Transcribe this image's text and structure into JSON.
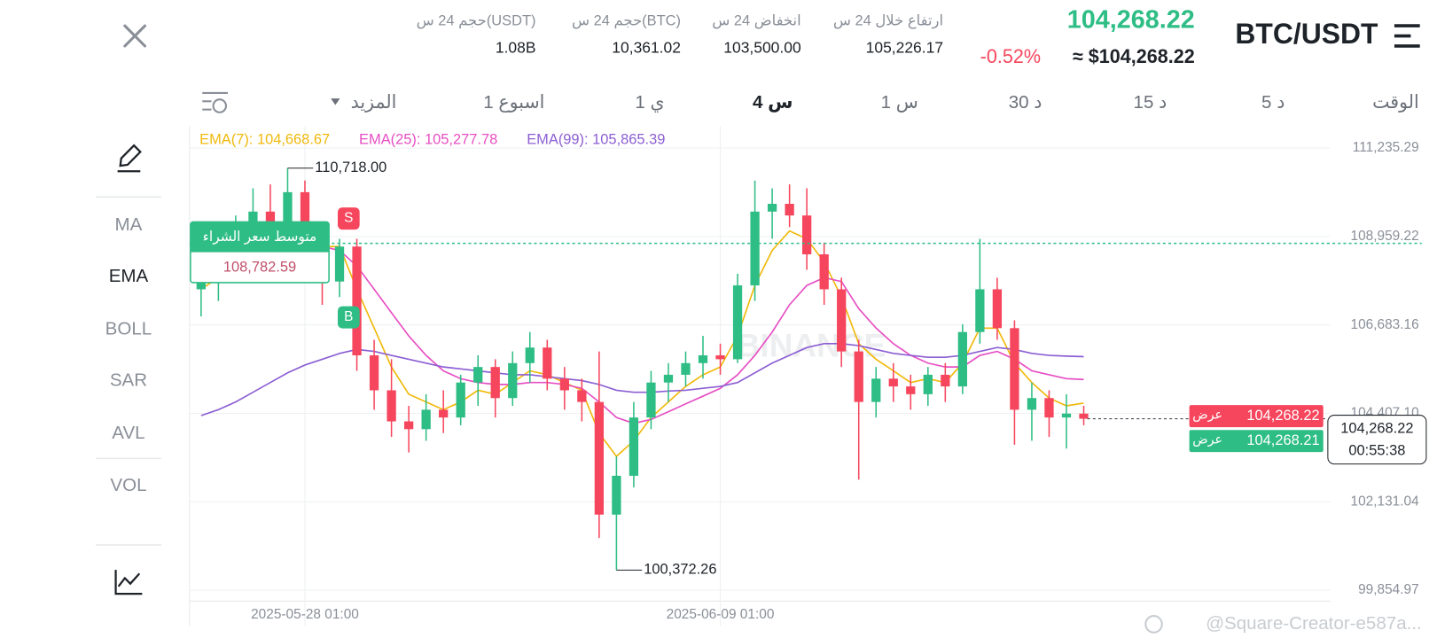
{
  "header": {
    "pair": "BTC/USDT",
    "price": "104,268.22",
    "change": "-0.52%",
    "fiat_price": "≈ $104,268.22",
    "stats": [
      {
        "label": "ارتفاع خلال 24 س",
        "value": "105,226.17"
      },
      {
        "label": "انخفاض 24 س",
        "value": "103,500.00"
      },
      {
        "label": "حجم 24 س(BTC)",
        "value": "10,361.02"
      },
      {
        "label": "حجم 24 س(USDT)",
        "value": "1.08B"
      }
    ]
  },
  "timeframes": [
    "الوقت",
    "5 د",
    "15 د",
    "30 د",
    "1 س",
    "4 س",
    "1 ي",
    "1 اسبوع",
    "المزيد"
  ],
  "indicators": [
    "MA",
    "EMA",
    "BOLL",
    "SAR",
    "AVL",
    "VOL"
  ],
  "watermark": "BINANCE",
  "credit": "@Square-Creator-e587a...",
  "chart_data": {
    "type": "candlestick",
    "up_color": "#2ebd85",
    "down_color": "#f6465d",
    "x": [
      "2025-05-25 01:00",
      "2025-05-25 13:00",
      "2025-05-26 01:00",
      "2025-05-26 13:00",
      "2025-05-27 01:00",
      "2025-05-27 13:00",
      "2025-05-28 01:00",
      "2025-05-28 13:00",
      "2025-05-29 01:00",
      "2025-05-29 13:00",
      "2025-05-30 01:00",
      "2025-05-30 13:00",
      "2025-05-31 01:00",
      "2025-05-31 13:00",
      "2025-06-01 01:00",
      "2025-06-01 13:00",
      "2025-06-02 01:00",
      "2025-06-02 13:00",
      "2025-06-03 01:00",
      "2025-06-03 13:00",
      "2025-06-04 01:00",
      "2025-06-04 13:00",
      "2025-06-05 01:00",
      "2025-06-05 13:00",
      "2025-06-06 01:00",
      "2025-06-06 13:00",
      "2025-06-07 01:00",
      "2025-06-07 13:00",
      "2025-06-08 01:00",
      "2025-06-08 13:00",
      "2025-06-09 01:00",
      "2025-06-09 13:00",
      "2025-06-10 01:00",
      "2025-06-10 13:00",
      "2025-06-11 01:00",
      "2025-06-11 13:00",
      "2025-06-12 01:00",
      "2025-06-12 13:00",
      "2025-06-13 01:00",
      "2025-06-13 13:00",
      "2025-06-14 01:00",
      "2025-06-14 13:00",
      "2025-06-15 01:00",
      "2025-06-15 13:00",
      "2025-06-16 01:00",
      "2025-06-16 13:00",
      "2025-06-17 01:00",
      "2025-06-17 13:00",
      "2025-06-18 01:00",
      "2025-06-18 13:00",
      "2025-06-19 01:00",
      "2025-06-19 13:00"
    ],
    "open": [
      107600,
      107900,
      108200,
      109200,
      109600,
      108900,
      110100,
      109000,
      107800,
      108700,
      105900,
      105000,
      104200,
      104000,
      104500,
      104300,
      105200,
      105600,
      104800,
      105700,
      106100,
      105300,
      105000,
      104700,
      101800,
      102800,
      104300,
      105200,
      105400,
      105700,
      105900,
      105800,
      107700,
      109600,
      109800,
      109500,
      108500,
      107600,
      106000,
      104700,
      105300,
      105100,
      104900,
      105400,
      105100,
      106500,
      107600,
      106600,
      104500,
      104800,
      104300,
      104400
    ],
    "high": [
      108300,
      108700,
      109500,
      110200,
      110300,
      110718,
      110400,
      109300,
      108900,
      108900,
      106300,
      105800,
      104600,
      104900,
      105000,
      105400,
      105900,
      105800,
      106000,
      106500,
      106300,
      105600,
      105300,
      106000,
      103300,
      104700,
      105500,
      105700,
      106000,
      106400,
      106200,
      108000,
      110400,
      110200,
      110300,
      110200,
      108800,
      107900,
      106300,
      105600,
      105700,
      105400,
      105600,
      105700,
      106700,
      108900,
      107900,
      106800,
      105200,
      105000,
      104900,
      104600
    ],
    "low": [
      106900,
      107300,
      107800,
      108600,
      108300,
      108500,
      108800,
      107200,
      107400,
      105500,
      104500,
      103800,
      103400,
      103700,
      103900,
      104100,
      104600,
      104300,
      104600,
      105200,
      105000,
      104500,
      104200,
      101200,
      100372.26,
      102500,
      104000,
      104700,
      105100,
      105300,
      105400,
      105700,
      107300,
      108900,
      109200,
      108100,
      107200,
      105600,
      102700,
      104300,
      104700,
      104500,
      104600,
      104700,
      104900,
      106200,
      106300,
      103600,
      103700,
      103800,
      103500,
      104100
    ],
    "close": [
      107900,
      108200,
      109200,
      109600,
      108900,
      110100,
      109000,
      107800,
      108700,
      105900,
      105000,
      104200,
      104000,
      104500,
      104300,
      105200,
      105600,
      104800,
      105700,
      106100,
      105300,
      105000,
      104700,
      101800,
      102800,
      104300,
      105200,
      105400,
      105700,
      105900,
      105800,
      107700,
      109600,
      109800,
      109500,
      108500,
      107600,
      106000,
      104700,
      105300,
      105100,
      104900,
      105400,
      105100,
      106500,
      107600,
      106600,
      104500,
      104800,
      104300,
      104400,
      104268.22
    ],
    "series": [
      {
        "name": "EMA(7): 104,668.67",
        "color": "#f0b90b",
        "values": [
          107600,
          107900,
          108500,
          109000,
          109000,
          109300,
          109200,
          108700,
          108700,
          107600,
          106600,
          105600,
          104900,
          104700,
          104500,
          104700,
          105000,
          104900,
          105200,
          105500,
          105400,
          105200,
          105000,
          103900,
          103300,
          103700,
          104300,
          104700,
          105100,
          105400,
          105600,
          106400,
          107700,
          108600,
          109100,
          108900,
          108300,
          107400,
          106200,
          105800,
          105500,
          105200,
          105300,
          105200,
          105700,
          106600,
          106600,
          105700,
          105200,
          104800,
          104600,
          104668.67
        ]
      },
      {
        "name": "EMA(25): 105,277.78",
        "color": "#e64fc3",
        "values": [
          107800,
          107900,
          108050,
          108300,
          108500,
          108700,
          108800,
          108700,
          108600,
          108200,
          107600,
          107000,
          106400,
          105900,
          105500,
          105300,
          105200,
          105150,
          105150,
          105200,
          105200,
          105150,
          105050,
          104700,
          104300,
          104150,
          104250,
          104450,
          104650,
          104850,
          105050,
          105400,
          105900,
          106500,
          107200,
          107700,
          107900,
          107800,
          107100,
          106600,
          106200,
          105900,
          105700,
          105600,
          105600,
          105900,
          106000,
          105800,
          105500,
          105400,
          105300,
          105277.78
        ]
      },
      {
        "name": "EMA(99): 105,865.39",
        "color": "#8c5fd3",
        "values": [
          104350,
          104500,
          104700,
          104950,
          105200,
          105450,
          105650,
          105800,
          105950,
          106050,
          106000,
          105900,
          105800,
          105700,
          105600,
          105550,
          105500,
          105450,
          105400,
          105400,
          105350,
          105300,
          105250,
          105150,
          105000,
          104950,
          104950,
          104980,
          105000,
          105050,
          105100,
          105200,
          105450,
          105700,
          105900,
          106100,
          106200,
          106200,
          106150,
          106050,
          105950,
          105900,
          105850,
          105850,
          105900,
          106000,
          106100,
          106050,
          105950,
          105900,
          105880,
          105865.39
        ]
      }
    ],
    "xlim": [
      "2025-05-24 17:00",
      "2025-06-26 13:00"
    ],
    "xticks": [
      "2025-05-28 01:00",
      "2025-06-09 01:00"
    ],
    "ylim": [
      99572,
      111800
    ],
    "yticks": [
      {
        "value": 99854.97,
        "label": "99,854.97"
      },
      {
        "value": 102131.04,
        "label": "102,131.04"
      },
      {
        "value": 104407.1,
        "label": "104,407.10"
      },
      {
        "value": 106683.16,
        "label": "106,683.16"
      },
      {
        "value": 108959.22,
        "label": "108,959.22"
      },
      {
        "value": 111235.29,
        "label": "111,235.29"
      }
    ],
    "grid": true,
    "max_label": {
      "x": "2025-05-27 13:00",
      "value": 110718,
      "label": "110,718.00"
    },
    "min_label": {
      "x": "2025-06-06 01:00",
      "value": 100372.26,
      "label": "100,372.26"
    },
    "trade_markers": [
      {
        "x": "2025-05-29 01:00",
        "label": "S",
        "color": "#f6465d"
      },
      {
        "x": "2025-05-29 01:00",
        "label": "B",
        "color": "#2ebd85"
      }
    ],
    "reference_line": {
      "label": "متوسط سعر الشراء",
      "value": 108782.59,
      "value_label": "108,782.59",
      "color": "#2ebd85"
    },
    "current_price": {
      "value": 104268.22,
      "label": "104,268.22",
      "countdown": "00:55:38",
      "ask": {
        "label": "عرض",
        "value": 104268.22,
        "value_label": "104,268.22"
      },
      "bid": {
        "label": "عرض",
        "value": 104268.21,
        "value_label": "104,268.21"
      }
    }
  }
}
